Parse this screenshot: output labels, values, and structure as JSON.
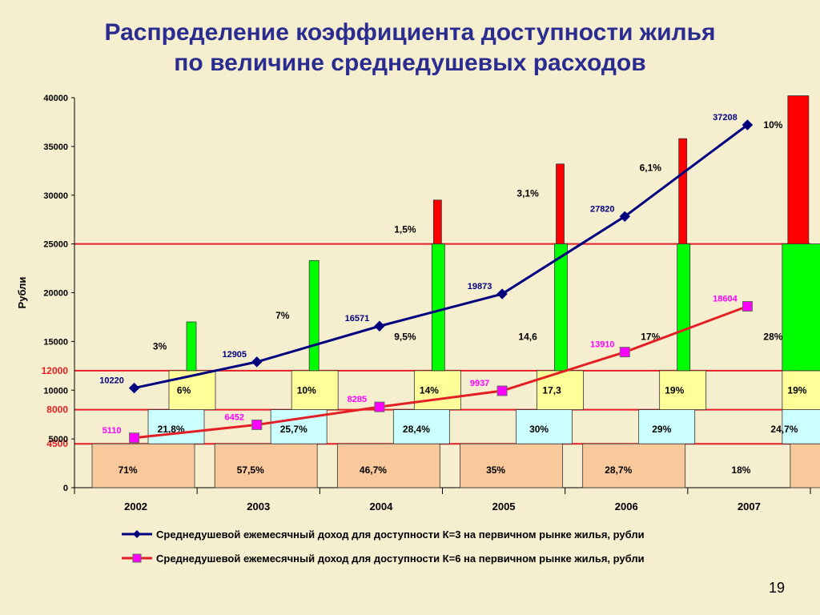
{
  "title": {
    "line1": "Распределение коэффициента доступности жилья",
    "line2": "по величине среднедушевых расходов"
  },
  "page_number": "19",
  "colors": {
    "background": "#f6efcf",
    "title": "#2b2c8f",
    "series_k3": "#00007f",
    "series_k6": "#e31e24",
    "marker_k6": "#ff00ff",
    "threshold": "#e31e24",
    "band_lowest": "#f9c89b",
    "band_low": "#ccffff",
    "band_mid": "#ffff99",
    "band_high": "#00ff00",
    "band_top": "#ff0000"
  },
  "chart_data": {
    "type": "bar",
    "description": "Stacked bars showing share of population by per-capita expense band, with lines of income needed for affordability",
    "categories": [
      "2002",
      "2003",
      "2004",
      "2005",
      "2006",
      "2007"
    ],
    "ylabel": "Рубли",
    "ylim": [
      0,
      40000
    ],
    "yticks": [
      "0",
      "5000",
      "10000",
      "15000",
      "20000",
      "25000",
      "30000",
      "35000",
      "40000"
    ],
    "grid": false,
    "legend_position": "bottom",
    "thresholds": [
      {
        "value": 4500,
        "label": "4500"
      },
      {
        "value": 8000,
        "label": "8000"
      },
      {
        "value": 12000,
        "label": "12000"
      },
      {
        "value": 25000,
        "label": ""
      }
    ],
    "bars": [
      {
        "year": "2002",
        "segments": [
          {
            "band": "lowest",
            "from": 0,
            "to": 4500,
            "label": "71%"
          },
          {
            "band": "low",
            "from": 4500,
            "to": 8000,
            "label": "21,8%"
          },
          {
            "band": "mid",
            "from": 8000,
            "to": 12000,
            "label": "6%"
          },
          {
            "band": "high",
            "from": 12000,
            "to": 17000,
            "label": "3%"
          }
        ]
      },
      {
        "year": "2003",
        "segments": [
          {
            "band": "lowest",
            "from": 0,
            "to": 4500,
            "label": "57,5%"
          },
          {
            "band": "low",
            "from": 4500,
            "to": 8000,
            "label": "25,7%"
          },
          {
            "band": "mid",
            "from": 8000,
            "to": 12000,
            "label": "10%"
          },
          {
            "band": "high",
            "from": 12000,
            "to": 23300,
            "label": "7%"
          }
        ]
      },
      {
        "year": "2004",
        "segments": [
          {
            "band": "lowest",
            "from": 0,
            "to": 4500,
            "label": "46,7%"
          },
          {
            "band": "low",
            "from": 4500,
            "to": 8000,
            "label": "28,4%"
          },
          {
            "band": "mid",
            "from": 8000,
            "to": 12000,
            "label": "14%"
          },
          {
            "band": "high",
            "from": 12000,
            "to": 25000,
            "label": "9,5%"
          },
          {
            "band": "top",
            "from": 25000,
            "to": 29500,
            "label": "1,5%"
          }
        ]
      },
      {
        "year": "2005",
        "segments": [
          {
            "band": "lowest",
            "from": 0,
            "to": 4500,
            "label": "35%"
          },
          {
            "band": "low",
            "from": 4500,
            "to": 8000,
            "label": "30%"
          },
          {
            "band": "mid",
            "from": 8000,
            "to": 12000,
            "label": "17,3"
          },
          {
            "band": "high",
            "from": 12000,
            "to": 25000,
            "label": "14,6"
          },
          {
            "band": "top",
            "from": 25000,
            "to": 33200,
            "label": "3,1%"
          }
        ]
      },
      {
        "year": "2006",
        "segments": [
          {
            "band": "lowest",
            "from": 0,
            "to": 4500,
            "label": "28,7%"
          },
          {
            "band": "low",
            "from": 4500,
            "to": 8000,
            "label": "29%"
          },
          {
            "band": "mid",
            "from": 8000,
            "to": 12000,
            "label": "19%"
          },
          {
            "band": "high",
            "from": 12000,
            "to": 25000,
            "label": "17%"
          },
          {
            "band": "top",
            "from": 25000,
            "to": 35800,
            "label": "6,1%"
          }
        ]
      },
      {
        "year": "2007",
        "segments": [
          {
            "band": "lowest",
            "from": 0,
            "to": 4500,
            "label": "18%"
          },
          {
            "band": "low",
            "from": 4500,
            "to": 8000,
            "label": "24,7%"
          },
          {
            "band": "mid",
            "from": 8000,
            "to": 12000,
            "label": "19%"
          },
          {
            "band": "high",
            "from": 12000,
            "to": 25000,
            "label": "28%"
          },
          {
            "band": "top",
            "from": 25000,
            "to": 40200,
            "label": "10%"
          }
        ]
      }
    ],
    "series": [
      {
        "name": "Среднедушевой ежемесячный доход для доступности К=3 на первичном рынке жилья, рубли",
        "marker": "diamond",
        "values": [
          10220,
          12905,
          16571,
          19873,
          27820,
          37208
        ]
      },
      {
        "name": "Среднедушевой ежемесячный доход для доступности К=6 на первичном рынке жилья, рубли",
        "marker": "square",
        "values": [
          5110,
          6452,
          8285,
          9937,
          13910,
          18604
        ]
      }
    ]
  }
}
